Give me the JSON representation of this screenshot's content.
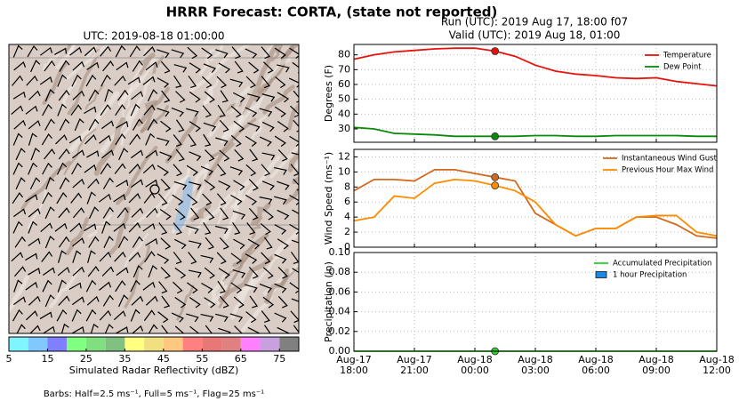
{
  "title": "HRRR Forecast: CORTA, (state not reported)",
  "footnote": "Barbs: Half=2.5 ms⁻¹, Full=5 ms⁻¹, Flag=25 ms⁻¹",
  "chart_data": [
    {
      "type": "map",
      "title": "UTC: 2019-08-18 01:00:00"
    },
    {
      "type": "colorbar",
      "label": "Simulated Radar Reflectivity (dBZ)",
      "colors": [
        "#7ff5ff",
        "#80c8ff",
        "#8080ff",
        "#80ff80",
        "#80e080",
        "#80c080",
        "#ffff80",
        "#f0e080",
        "#ffc880",
        "#ff8080",
        "#e87878",
        "#e08080",
        "#ff80ff",
        "#c8a0e0",
        "#808080"
      ],
      "xlim": [
        5,
        80
      ],
      "xticks": [
        5,
        15,
        25,
        35,
        45,
        55,
        65,
        75
      ]
    },
    {
      "type": "line",
      "title": "Run (UTC): 2019 Aug 17, 18:00 f07",
      "subtitle": "Valid (UTC): 2019 Aug 18, 01:00",
      "ylabel": "Degrees (F)",
      "highlight": "Aug-18 01:00",
      "grid": true,
      "legend": "upper right",
      "x": [
        "Aug-17 18:00",
        "Aug-17 19:00",
        "Aug-17 20:00",
        "Aug-17 21:00",
        "Aug-17 22:00",
        "Aug-17 23:00",
        "Aug-18 00:00",
        "Aug-18 01:00",
        "Aug-18 02:00",
        "Aug-18 03:00",
        "Aug-18 04:00",
        "Aug-18 05:00",
        "Aug-18 06:00",
        "Aug-18 07:00",
        "Aug-18 08:00",
        "Aug-18 09:00",
        "Aug-18 10:00",
        "Aug-18 11:00",
        "Aug-18 12:00"
      ],
      "series": [
        {
          "name": "Temperature",
          "color": "#e8120c",
          "values": [
            77,
            80,
            82,
            83,
            84,
            84.5,
            84.5,
            82.5,
            79,
            73,
            69,
            67,
            66,
            64.5,
            64,
            64.5,
            62,
            60.5,
            59
          ]
        },
        {
          "name": "Dew Point",
          "color": "#0a8a0a",
          "values": [
            31,
            30,
            27,
            26.5,
            26,
            25,
            25,
            25,
            25,
            25.5,
            25.5,
            25,
            25,
            25.5,
            25.5,
            25.5,
            25.5,
            25,
            25
          ]
        }
      ],
      "ylim": [
        21,
        87
      ],
      "yticks": [
        30,
        40,
        50,
        60,
        70,
        80
      ]
    },
    {
      "type": "line",
      "ylabel": "Wind Speed (ms⁻¹)",
      "highlight": "Aug-18 01:00",
      "grid": true,
      "legend": "upper right",
      "x": [
        "Aug-17 18:00",
        "Aug-17 19:00",
        "Aug-17 20:00",
        "Aug-17 21:00",
        "Aug-17 22:00",
        "Aug-17 23:00",
        "Aug-18 00:00",
        "Aug-18 01:00",
        "Aug-18 02:00",
        "Aug-18 03:00",
        "Aug-18 04:00",
        "Aug-18 05:00",
        "Aug-18 06:00",
        "Aug-18 07:00",
        "Aug-18 08:00",
        "Aug-18 09:00",
        "Aug-18 10:00",
        "Aug-18 11:00",
        "Aug-18 12:00"
      ],
      "series": [
        {
          "name": "Instantaneous Wind Gust",
          "color": "#d2691e",
          "values": [
            7.5,
            9,
            9,
            8.8,
            10.3,
            10.3,
            9.8,
            9.3,
            8.8,
            4.5,
            3,
            1.5,
            2.5,
            2.5,
            4,
            4,
            3,
            1.5,
            1.2
          ]
        },
        {
          "name": "Previous Hour Max Wind",
          "color": "#ff8c00",
          "values": [
            3.5,
            4,
            6.8,
            6.5,
            8.5,
            9,
            8.8,
            8.2,
            7.5,
            6,
            3,
            1.5,
            2.5,
            2.5,
            4,
            4.2,
            4.2,
            2,
            1.5
          ]
        }
      ],
      "ylim": [
        0,
        13
      ],
      "yticks": [
        0,
        2,
        4,
        6,
        8,
        10,
        12
      ]
    },
    {
      "type": "combo",
      "ylabel": "Precipitation (in)",
      "highlight": "Aug-18 01:00",
      "grid": true,
      "legend": "upper right",
      "x": [
        "Aug-17 18:00",
        "Aug-17 19:00",
        "Aug-17 20:00",
        "Aug-17 21:00",
        "Aug-17 22:00",
        "Aug-17 23:00",
        "Aug-18 00:00",
        "Aug-18 01:00",
        "Aug-18 02:00",
        "Aug-18 03:00",
        "Aug-18 04:00",
        "Aug-18 05:00",
        "Aug-18 06:00",
        "Aug-18 07:00",
        "Aug-18 08:00",
        "Aug-18 09:00",
        "Aug-18 10:00",
        "Aug-18 11:00",
        "Aug-18 12:00"
      ],
      "series": [
        {
          "name": "Accumulated Precipitation",
          "kind": "line",
          "color": "#32cd32",
          "values": [
            0,
            0,
            0,
            0,
            0,
            0,
            0,
            0,
            0,
            0,
            0,
            0,
            0,
            0,
            0,
            0,
            0,
            0,
            0
          ]
        },
        {
          "name": "1 hour Precipitation",
          "kind": "bar",
          "color": "#1e88e5",
          "values": [
            0,
            0,
            0,
            0,
            0,
            0,
            0,
            0,
            0,
            0,
            0,
            0,
            0,
            0,
            0,
            0,
            0,
            0,
            0
          ]
        }
      ],
      "xlim": [
        "Aug-17 18:00",
        "Aug-18 12:00"
      ],
      "xticks": [
        "Aug-17 18:00",
        "Aug-17 21:00",
        "Aug-18 00:00",
        "Aug-18 03:00",
        "Aug-18 06:00",
        "Aug-18 09:00",
        "Aug-18 12:00"
      ],
      "ylim": [
        0,
        0.1
      ],
      "yticks": [
        {
          "value": 0,
          "label": "0.00"
        },
        {
          "value": 0.02,
          "label": "0.02"
        },
        {
          "value": 0.04,
          "label": "0.04"
        },
        {
          "value": 0.06,
          "label": "0.06"
        },
        {
          "value": 0.08,
          "label": "0.08"
        },
        {
          "value": 0.1,
          "label": "0.10"
        }
      ]
    }
  ]
}
